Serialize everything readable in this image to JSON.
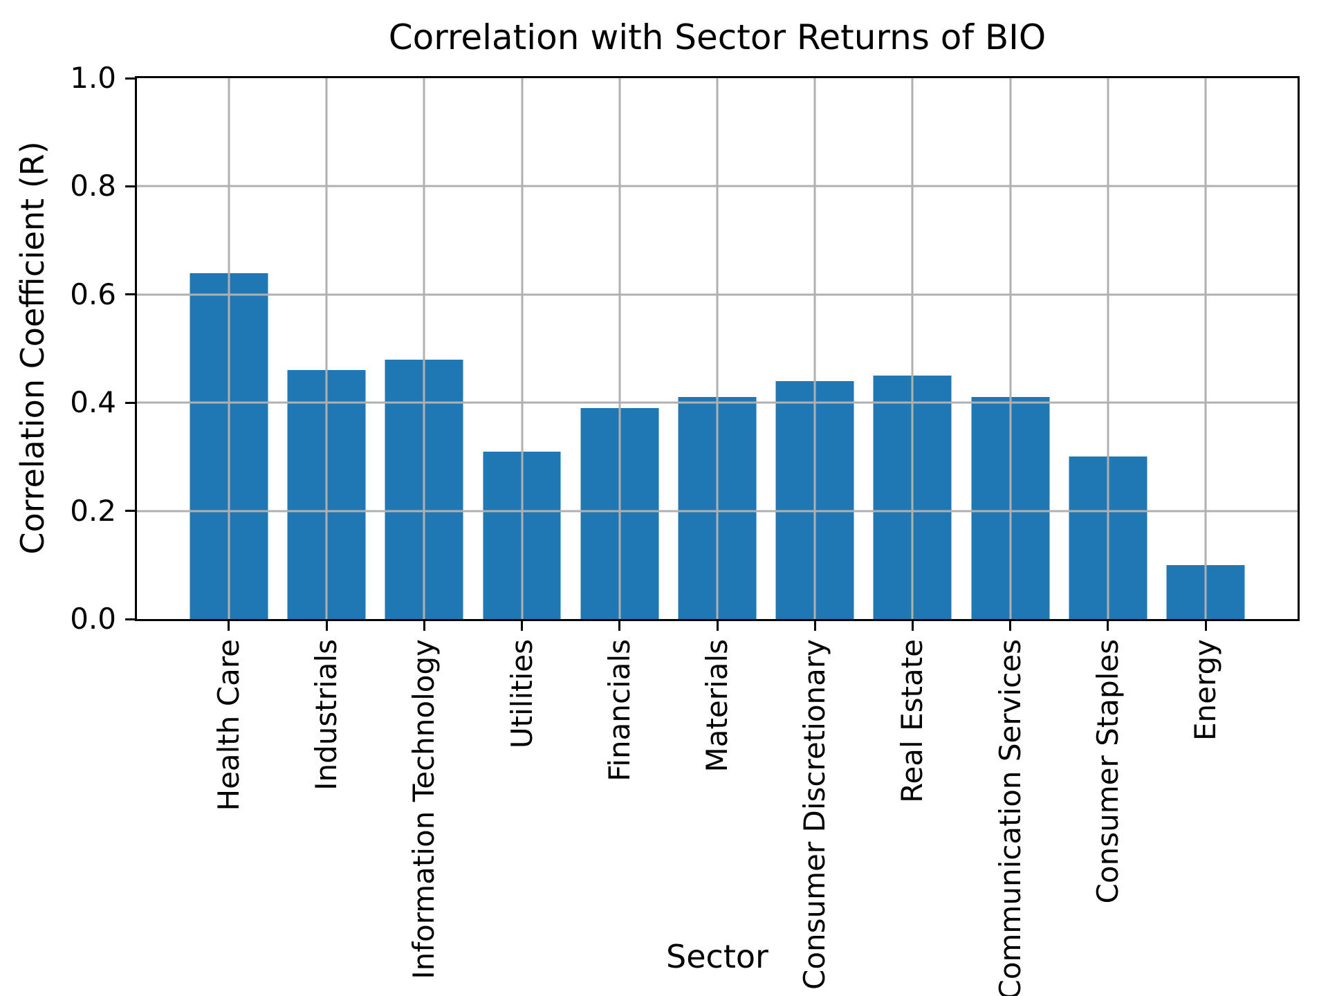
{
  "chart_data": {
    "type": "bar",
    "title": "Correlation with Sector Returns of BIO",
    "xlabel": "Sector",
    "ylabel": "Correlation Coefficient (R)",
    "categories": [
      "Health Care",
      "Industrials",
      "Information Technology",
      "Utilities",
      "Financials",
      "Materials",
      "Consumer Discretionary",
      "Real Estate",
      "Communication Services",
      "Consumer Staples",
      "Energy"
    ],
    "values": [
      0.64,
      0.46,
      0.48,
      0.31,
      0.39,
      0.41,
      0.44,
      0.45,
      0.41,
      0.3,
      0.1
    ],
    "ylim": [
      0.0,
      1.0
    ],
    "yticks": [
      0.0,
      0.2,
      0.4,
      0.6,
      0.8,
      1.0
    ],
    "grid": true,
    "legend": "none",
    "bar_color": "#1f77b4",
    "grid_color": "#b0b0b0",
    "bar_width_units": 0.8
  }
}
